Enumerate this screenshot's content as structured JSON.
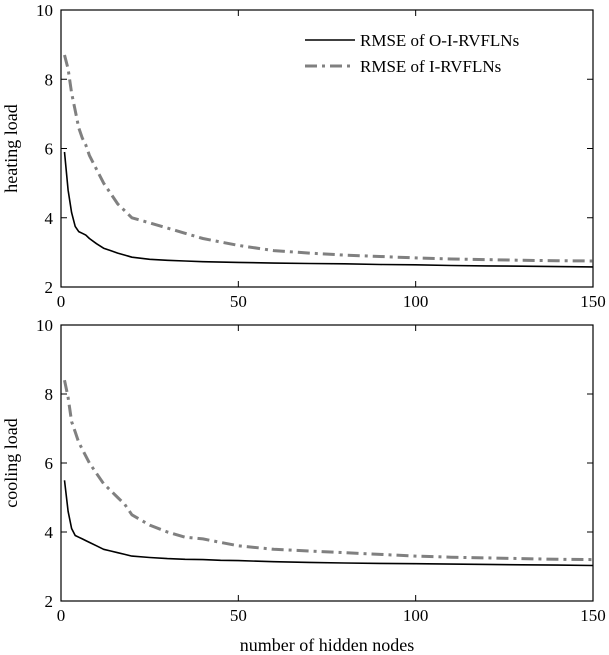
{
  "chart_data": [
    {
      "type": "line",
      "ylabel": "heating load",
      "xlabel": "",
      "xlim": [
        0,
        150
      ],
      "ylim": [
        2,
        10
      ],
      "xticks": [
        0,
        50,
        100,
        150
      ],
      "yticks": [
        2,
        4,
        6,
        8,
        10
      ],
      "xtick_labels": [
        "0",
        "50",
        "100",
        "150"
      ],
      "ytick_labels": [
        "2",
        "4",
        "6",
        "8",
        "10"
      ],
      "grid": false,
      "legend_position": "top-right",
      "series": [
        {
          "name": "RMSE of O-I-RVFLNs",
          "color": "#000000",
          "style": "solid",
          "x": [
            1,
            2,
            3,
            4,
            5,
            6,
            7,
            8,
            10,
            12,
            14,
            16,
            18,
            20,
            25,
            30,
            35,
            40,
            45,
            50,
            60,
            70,
            80,
            90,
            100,
            110,
            120,
            130,
            140,
            150
          ],
          "y": [
            5.9,
            4.8,
            4.15,
            3.75,
            3.6,
            3.55,
            3.5,
            3.4,
            3.25,
            3.12,
            3.05,
            2.98,
            2.92,
            2.86,
            2.8,
            2.77,
            2.75,
            2.73,
            2.72,
            2.71,
            2.69,
            2.68,
            2.67,
            2.65,
            2.64,
            2.62,
            2.61,
            2.6,
            2.59,
            2.58
          ]
        },
        {
          "name": "RMSE of I-RVFLNs",
          "color": "#808080",
          "style": "dashed",
          "x": [
            1,
            2,
            3,
            4,
            5,
            6,
            7,
            8,
            10,
            12,
            14,
            16,
            18,
            20,
            25,
            30,
            35,
            40,
            45,
            50,
            60,
            70,
            80,
            90,
            100,
            110,
            120,
            130,
            140,
            150
          ],
          "y": [
            8.7,
            8.3,
            7.6,
            7.1,
            6.6,
            6.3,
            6.1,
            5.8,
            5.4,
            5.0,
            4.7,
            4.4,
            4.2,
            4.0,
            3.85,
            3.7,
            3.55,
            3.4,
            3.3,
            3.2,
            3.05,
            2.98,
            2.92,
            2.88,
            2.84,
            2.81,
            2.79,
            2.77,
            2.76,
            2.75
          ]
        }
      ]
    },
    {
      "type": "line",
      "ylabel": "cooling load",
      "xlabel": "number of hidden nodes",
      "xlim": [
        0,
        150
      ],
      "ylim": [
        2,
        10
      ],
      "xticks": [
        0,
        50,
        100,
        150
      ],
      "yticks": [
        2,
        4,
        6,
        8,
        10
      ],
      "xtick_labels": [
        "0",
        "50",
        "100",
        "150"
      ],
      "ytick_labels": [
        "2",
        "4",
        "6",
        "8",
        "10"
      ],
      "grid": false,
      "series": [
        {
          "name": "RMSE of O-I-RVFLNs",
          "color": "#000000",
          "style": "solid",
          "x": [
            1,
            2,
            3,
            4,
            5,
            6,
            7,
            8,
            10,
            12,
            14,
            16,
            18,
            20,
            25,
            30,
            35,
            40,
            45,
            50,
            60,
            70,
            80,
            90,
            100,
            110,
            120,
            130,
            140,
            150
          ],
          "y": [
            5.5,
            4.6,
            4.1,
            3.9,
            3.85,
            3.8,
            3.75,
            3.7,
            3.6,
            3.5,
            3.45,
            3.4,
            3.35,
            3.3,
            3.26,
            3.23,
            3.21,
            3.2,
            3.18,
            3.17,
            3.14,
            3.12,
            3.1,
            3.09,
            3.08,
            3.07,
            3.06,
            3.05,
            3.04,
            3.03
          ]
        },
        {
          "name": "RMSE of I-RVFLNs",
          "color": "#808080",
          "style": "dashed",
          "x": [
            1,
            2,
            3,
            4,
            5,
            6,
            7,
            8,
            10,
            12,
            14,
            16,
            18,
            20,
            25,
            30,
            35,
            40,
            45,
            50,
            60,
            70,
            80,
            90,
            100,
            110,
            120,
            130,
            140,
            150
          ],
          "y": [
            8.4,
            7.9,
            7.2,
            6.9,
            6.6,
            6.4,
            6.2,
            6.0,
            5.7,
            5.4,
            5.2,
            5.0,
            4.8,
            4.5,
            4.2,
            4.0,
            3.85,
            3.8,
            3.7,
            3.6,
            3.5,
            3.45,
            3.4,
            3.35,
            3.3,
            3.27,
            3.25,
            3.23,
            3.21,
            3.2
          ]
        }
      ]
    }
  ]
}
